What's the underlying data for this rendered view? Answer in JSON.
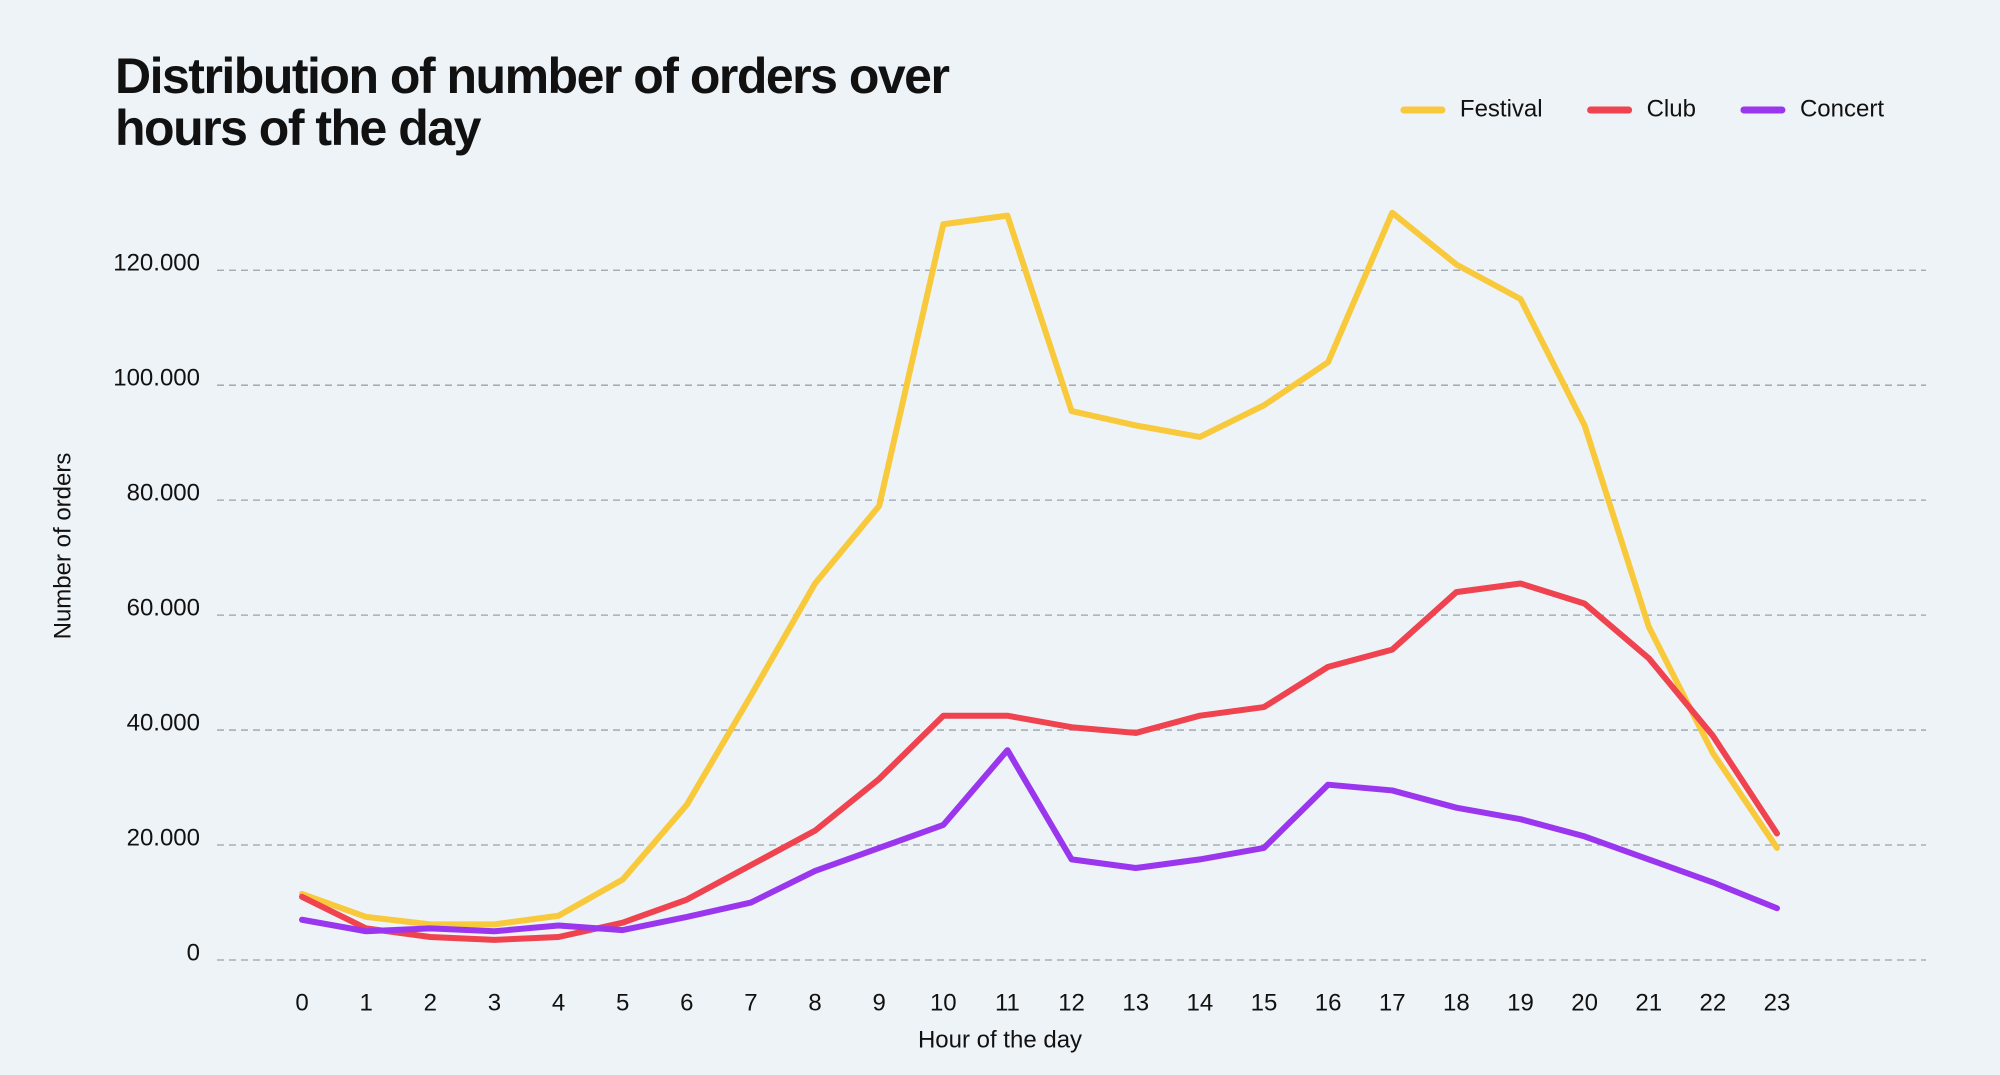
{
  "chart_data": {
    "type": "line",
    "title": "Distribution of number of orders over hours of the day",
    "x_label": "Hour of the day",
    "y_label": "Number of orders",
    "categories": [
      "0",
      "1",
      "2",
      "3",
      "4",
      "5",
      "6",
      "7",
      "8",
      "9",
      "10",
      "11",
      "12",
      "13",
      "14",
      "15",
      "16",
      "17",
      "18",
      "19",
      "20",
      "21",
      "22",
      "23"
    ],
    "series": [
      {
        "name": "Festival",
        "color": "#f9c93c",
        "values": [
          11500,
          7500,
          6200,
          6200,
          7700,
          14000,
          27000,
          46000,
          65500,
          79000,
          128000,
          129500,
          95500,
          93000,
          91000,
          96500,
          104000,
          130000,
          121000,
          115000,
          93000,
          58000,
          36000,
          19500
        ]
      },
      {
        "name": "Club",
        "color": "#ef4350",
        "values": [
          11000,
          5500,
          4000,
          3500,
          4000,
          6500,
          10500,
          16500,
          22500,
          31500,
          42500,
          42500,
          40500,
          39500,
          42500,
          44000,
          51000,
          54000,
          64000,
          65500,
          62000,
          52500,
          39000,
          22000
        ]
      },
      {
        "name": "Concert",
        "color": "#9b36ef",
        "values": [
          7000,
          5000,
          5500,
          5000,
          6000,
          5200,
          7500,
          10000,
          15500,
          19500,
          23500,
          36500,
          17500,
          16000,
          17500,
          19500,
          30500,
          29500,
          26500,
          24500,
          21500,
          17500,
          13500,
          9000
        ]
      }
    ],
    "ylim": [
      0,
      135000
    ],
    "yticks": [
      0,
      {
        "value": 20000,
        "label": "20.000"
      },
      {
        "value": 40000,
        "label": "40.000"
      },
      {
        "value": 60000,
        "label": "60.000"
      },
      {
        "value": 80000,
        "label": "80.000"
      },
      {
        "value": 100000,
        "label": "100.000"
      },
      {
        "value": 120000,
        "label": "120.000"
      }
    ],
    "grid": true,
    "legend": "upper right"
  }
}
